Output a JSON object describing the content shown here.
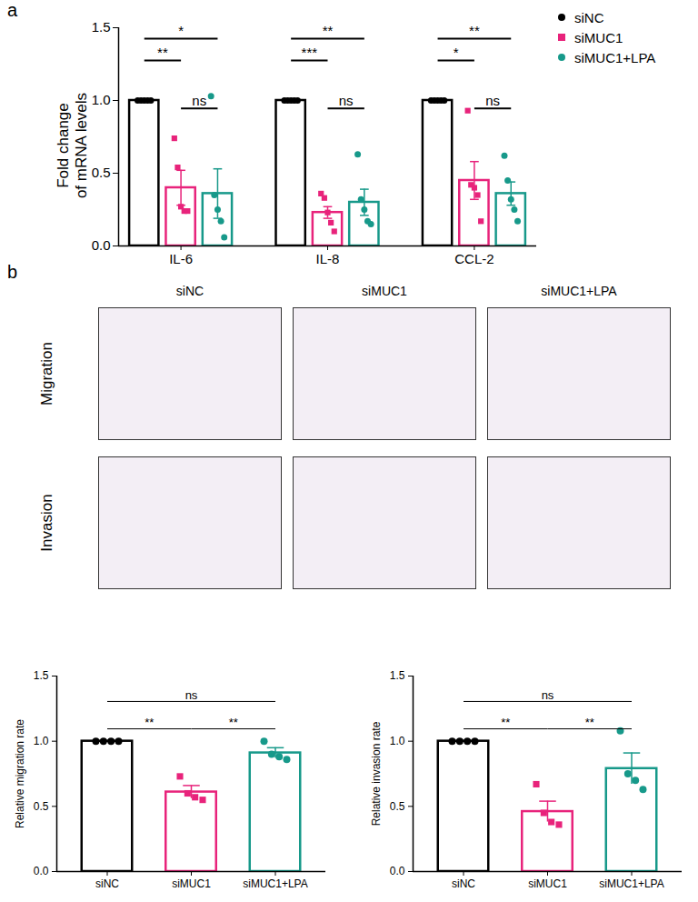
{
  "figure": {
    "panel_labels": [
      "a",
      "b"
    ],
    "image_grid": {
      "columns": [
        "siNC",
        "siMUC1",
        "siMUC1+LPA"
      ],
      "rows": [
        "Migration",
        "Invasion"
      ]
    }
  },
  "chart_data": [
    {
      "type": "bar",
      "ylabel": "Fold change\nof mRNA levels",
      "categories": [
        "IL-6",
        "IL-8",
        "CCL-2"
      ],
      "ylim": [
        0,
        1.5
      ],
      "yticks": [
        {
          "value": 0,
          "label": "0.0"
        },
        {
          "value": 0.5,
          "label": "0.5"
        },
        {
          "value": 1,
          "label": "1.0"
        },
        {
          "value": 1.5,
          "label": "1.5"
        }
      ],
      "legend": "top-right",
      "series": [
        {
          "name": "siNC",
          "color": "#000000",
          "marker": "circle",
          "values": [
            1,
            1,
            1
          ],
          "errors": [
            0,
            0,
            0
          ],
          "points": [
            [
              1,
              1,
              1,
              1,
              1
            ],
            [
              1,
              1,
              1,
              1,
              1
            ],
            [
              1,
              1,
              1,
              1,
              1
            ]
          ]
        },
        {
          "name": "siMUC1",
          "color": "#e8237b",
          "marker": "square",
          "values": [
            0.4,
            0.23,
            0.45
          ],
          "errors": [
            0.12,
            0.04,
            0.13
          ],
          "points": [
            [
              0.74,
              0.54,
              0.27,
              0.24,
              0.24
            ],
            [
              0.36,
              0.33,
              0.23,
              0.16,
              0.1
            ],
            [
              0.93,
              0.42,
              0.4,
              0.35,
              0.17
            ]
          ]
        },
        {
          "name": "siMUC1+LPA",
          "color": "#17998a",
          "marker": "circle",
          "values": [
            0.36,
            0.3,
            0.36
          ],
          "errors": [
            0.17,
            0.09,
            0.08
          ],
          "points": [
            [
              1.03,
              0.35,
              0.25,
              0.17,
              0.06
            ],
            [
              0.63,
              0.32,
              0.25,
              0.17,
              0.15
            ],
            [
              0.62,
              0.45,
              0.32,
              0.25,
              0.17
            ]
          ]
        }
      ],
      "annotations": [
        {
          "category": "IL-6",
          "from": "siNC",
          "to": "siMUC1",
          "label": "**"
        },
        {
          "category": "IL-6",
          "from": "siNC",
          "to": "siMUC1+LPA",
          "label": "*"
        },
        {
          "category": "IL-6",
          "from": "siMUC1",
          "to": "siMUC1+LPA",
          "label": "ns"
        },
        {
          "category": "IL-8",
          "from": "siNC",
          "to": "siMUC1",
          "label": "***"
        },
        {
          "category": "IL-8",
          "from": "siNC",
          "to": "siMUC1+LPA",
          "label": "**"
        },
        {
          "category": "IL-8",
          "from": "siMUC1",
          "to": "siMUC1+LPA",
          "label": "ns"
        },
        {
          "category": "CCL-2",
          "from": "siNC",
          "to": "siMUC1",
          "label": "*"
        },
        {
          "category": "CCL-2",
          "from": "siNC",
          "to": "siMUC1+LPA",
          "label": "**"
        },
        {
          "category": "CCL-2",
          "from": "siMUC1",
          "to": "siMUC1+LPA",
          "label": "ns"
        }
      ]
    },
    {
      "type": "bar",
      "ylabel": "Relative migration rate",
      "categories": [
        "siNC",
        "siMUC1",
        "siMUC1+LPA"
      ],
      "values": [
        1,
        0.61,
        0.91
      ],
      "errors": [
        0,
        0.05,
        0.04
      ],
      "points": [
        [
          1,
          1,
          1,
          1
        ],
        [
          0.73,
          0.6,
          0.57,
          0.55
        ],
        [
          1.0,
          0.9,
          0.88,
          0.86
        ]
      ],
      "colors": [
        "#000000",
        "#e8237b",
        "#17998a"
      ],
      "marker": [
        "circle",
        "square",
        "circle"
      ],
      "ylim": [
        0,
        1.5
      ],
      "yticks": [
        {
          "value": 0,
          "label": "0.0"
        },
        {
          "value": 0.5,
          "label": "0.5"
        },
        {
          "value": 1,
          "label": "1.0"
        },
        {
          "value": 1.5,
          "label": "1.5"
        }
      ],
      "annotations": [
        {
          "from": "siNC",
          "to": "siMUC1",
          "label": "**"
        },
        {
          "from": "siMUC1",
          "to": "siMUC1+LPA",
          "label": "**"
        },
        {
          "from": "siNC",
          "to": "siMUC1+LPA",
          "label": "ns"
        }
      ]
    },
    {
      "type": "bar",
      "ylabel": "Relative invasion rate",
      "categories": [
        "siNC",
        "siMUC1",
        "siMUC1+LPA"
      ],
      "values": [
        1,
        0.46,
        0.79
      ],
      "errors": [
        0,
        0.08,
        0.12
      ],
      "points": [
        [
          1,
          1,
          1,
          1
        ],
        [
          0.67,
          0.45,
          0.38,
          0.36
        ],
        [
          1.08,
          0.75,
          0.7,
          0.63
        ]
      ],
      "colors": [
        "#000000",
        "#e8237b",
        "#17998a"
      ],
      "marker": [
        "circle",
        "square",
        "circle"
      ],
      "ylim": [
        0,
        1.5
      ],
      "yticks": [
        {
          "value": 0,
          "label": "0.0"
        },
        {
          "value": 0.5,
          "label": "0.5"
        },
        {
          "value": 1,
          "label": "1.0"
        },
        {
          "value": 1.5,
          "label": "1.5"
        }
      ],
      "annotations": [
        {
          "from": "siNC",
          "to": "siMUC1",
          "label": "**"
        },
        {
          "from": "siMUC1",
          "to": "siMUC1+LPA",
          "label": "**"
        },
        {
          "from": "siNC",
          "to": "siMUC1+LPA",
          "label": "ns"
        }
      ]
    }
  ]
}
